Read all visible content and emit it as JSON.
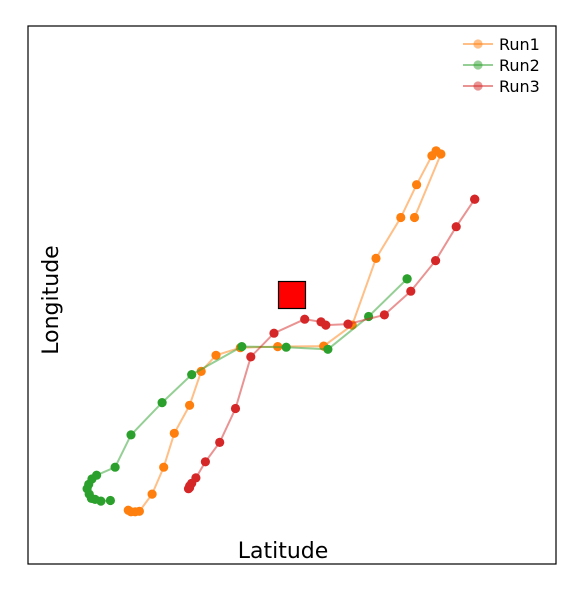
{
  "chart_data": {
    "type": "line",
    "title": "",
    "xlabel": "Latitude",
    "ylabel": "Longitude",
    "xlim": [
      0,
      100
    ],
    "ylim": [
      0,
      100
    ],
    "grid": false,
    "legend_position": "top-right",
    "series": [
      {
        "name": "Run1",
        "color": "#ff7f0e",
        "x": [
          19.0,
          19.5,
          20.3,
          21.1,
          23.5,
          25.7,
          27.7,
          30.6,
          32.8,
          35.6,
          40.2,
          47.3,
          56.0,
          61.4,
          65.9,
          70.6,
          73.6,
          76.5,
          77.3,
          78.2,
          73.2
        ],
        "y": [
          10.0,
          9.7,
          9.7,
          9.8,
          13.0,
          18.0,
          24.3,
          29.5,
          35.8,
          38.8,
          40.2,
          40.4,
          40.5,
          44.4,
          56.8,
          64.4,
          70.5,
          75.9,
          76.8,
          76.2,
          64.4
        ]
      },
      {
        "name": "Run2",
        "color": "#2ca02c",
        "x": [
          15.6,
          13.8,
          12.7,
          12.0,
          11.6,
          11.2,
          11.5,
          12.1,
          13.0,
          16.5,
          19.5,
          25.4,
          31.0,
          40.5,
          48.9,
          56.8,
          64.5,
          71.8,
          71.8
        ],
        "y": [
          11.8,
          11.7,
          12.0,
          12.2,
          13.0,
          14.0,
          14.8,
          15.8,
          16.5,
          18.0,
          24.0,
          30.0,
          35.2,
          40.4,
          40.3,
          39.9,
          46.0,
          53.0,
          53.0
        ]
      },
      {
        "name": "Run3",
        "color": "#d62728",
        "x": [
          30.6,
          30.4,
          30.6,
          31.0,
          31.8,
          33.6,
          36.3,
          39.3,
          42.2,
          46.6,
          52.4,
          55.5,
          56.4,
          60.6,
          67.5,
          72.5,
          77.2,
          81.1,
          84.6,
          84.6
        ],
        "y": [
          14.2,
          14.0,
          14.5,
          15.0,
          16.0,
          19.0,
          22.6,
          28.9,
          38.5,
          42.9,
          45.5,
          45.0,
          44.4,
          44.6,
          46.3,
          50.7,
          56.4,
          62.7,
          67.8,
          67.8
        ]
      }
    ]
  },
  "marker": {
    "label": "",
    "x": 50.0,
    "y": 50.0,
    "color": "#ff0000"
  }
}
